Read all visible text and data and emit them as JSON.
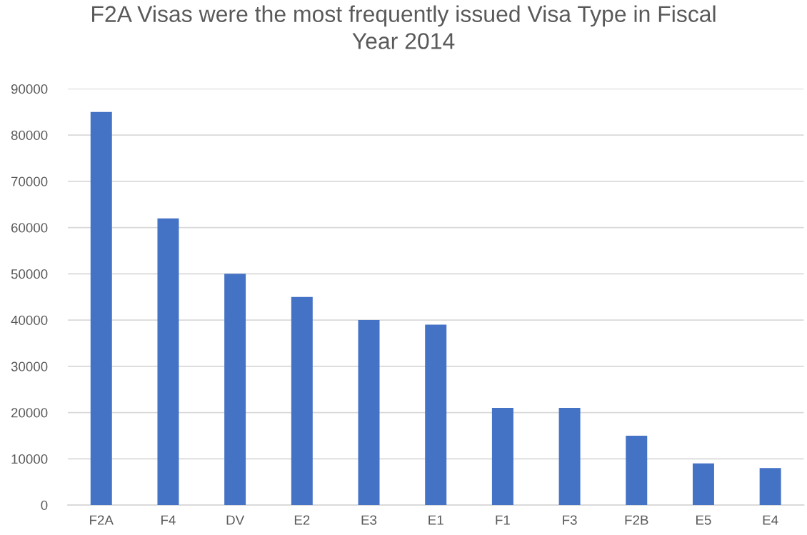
{
  "chart_data": {
    "type": "bar",
    "title": "F2A Visas were the most frequently issued Visa Type in Fiscal Year 2014",
    "categories": [
      "F2A",
      "F4",
      "DV",
      "E2",
      "E3",
      "E1",
      "F1",
      "F3",
      "F2B",
      "E5",
      "E4"
    ],
    "values": [
      85000,
      62000,
      50000,
      45000,
      40000,
      39000,
      21000,
      21000,
      15000,
      9000,
      8000
    ],
    "color": "#4472c4",
    "ylim": [
      0,
      90000
    ],
    "yticks": [
      0,
      10000,
      20000,
      30000,
      40000,
      50000,
      60000,
      70000,
      80000,
      90000
    ],
    "grid": "y"
  }
}
